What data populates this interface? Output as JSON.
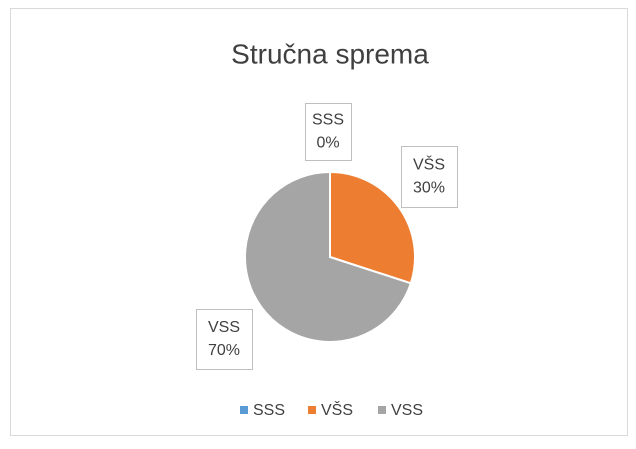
{
  "chart_data": {
    "type": "pie",
    "title": "Stručna sprema",
    "categories": [
      "SSS",
      "VŠS",
      "VSS"
    ],
    "values": [
      0,
      30,
      70
    ],
    "value_labels": [
      "0%",
      "30%",
      "70%"
    ],
    "colors": [
      "#5b9bd5",
      "#ed7d31",
      "#a5a5a5"
    ],
    "legend": "bottom"
  }
}
